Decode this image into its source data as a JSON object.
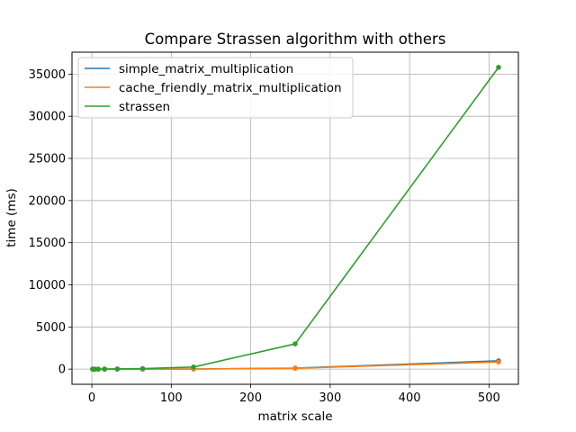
{
  "chart_data": {
    "type": "line",
    "title": "Compare Strassen algorithm with others",
    "xlabel": "matrix scale",
    "ylabel": "time (ms)",
    "xlim": [
      -25,
      537
    ],
    "ylim": [
      -1800,
      37600
    ],
    "xticks": [
      0,
      100,
      200,
      300,
      400,
      500
    ],
    "yticks": [
      0,
      5000,
      10000,
      15000,
      20000,
      25000,
      30000,
      35000
    ],
    "grid": true,
    "legend_position": "top-left",
    "x": [
      1,
      2,
      4,
      8,
      16,
      32,
      64,
      128,
      256,
      512
    ],
    "series": [
      {
        "name": "simple_matrix_multiplication",
        "color": "#1f77b4",
        "values": [
          0,
          0,
          0,
          0,
          0,
          0.3,
          2,
          16,
          120,
          980
        ]
      },
      {
        "name": "cache_friendly_matrix_multiplication",
        "color": "#ff7f0e",
        "values": [
          0,
          0,
          0,
          0,
          0,
          0.2,
          1.5,
          12,
          100,
          850
        ]
      },
      {
        "name": "strassen",
        "color": "#2ca02c",
        "values": [
          0,
          0,
          0.1,
          0.6,
          4,
          25,
          60,
          250,
          3000,
          35800
        ]
      }
    ]
  }
}
